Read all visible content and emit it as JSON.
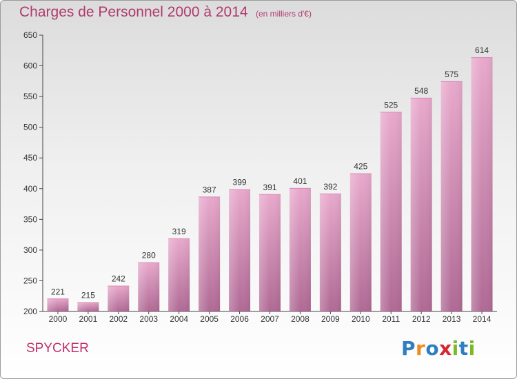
{
  "header": {
    "title": "Charges de Personnel 2000 à 2014",
    "subtitle": "(en milliers d'€)"
  },
  "footer": {
    "commune": "SPYCKER",
    "logo": "Proxiti"
  },
  "colors": {
    "bar_light": "#e8a9cc",
    "bar_dark": "#b06a95",
    "title": "#b03a6e"
  },
  "chart_data": {
    "type": "bar",
    "categories": [
      "2000",
      "2001",
      "2002",
      "2003",
      "2004",
      "2005",
      "2006",
      "2007",
      "2008",
      "2009",
      "2010",
      "2011",
      "2012",
      "2013",
      "2014"
    ],
    "values": [
      221,
      215,
      242,
      280,
      319,
      387,
      399,
      391,
      401,
      392,
      425,
      525,
      548,
      575,
      614
    ],
    "title": "Charges de Personnel 2000 à 2014",
    "xlabel": "",
    "ylabel": "",
    "ylim": [
      200,
      650
    ],
    "yticks": [
      200,
      250,
      300,
      350,
      400,
      450,
      500,
      550,
      600,
      650
    ],
    "grid": false,
    "legend": "none"
  }
}
